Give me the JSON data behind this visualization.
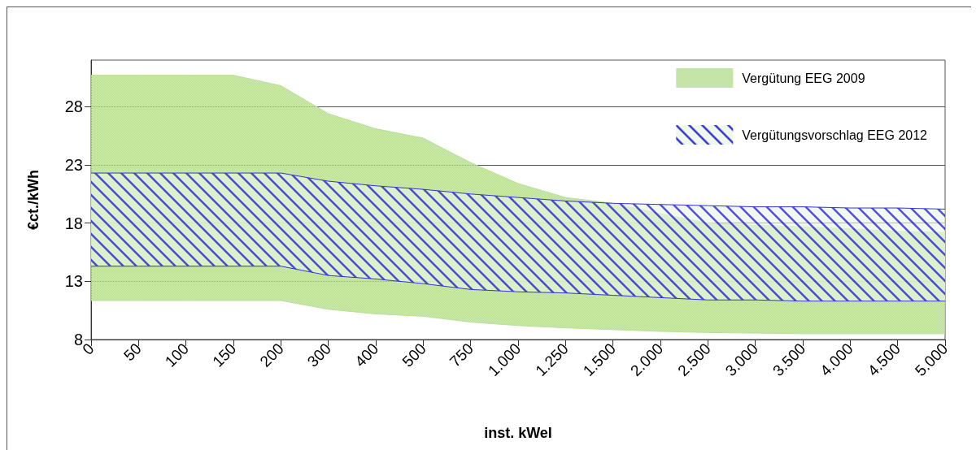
{
  "chart_data": {
    "type": "area",
    "xlabel": "inst. kWel",
    "ylabel": "€ct./kWh",
    "categories": [
      "0",
      "50",
      "100",
      "150",
      "200",
      "300",
      "400",
      "500",
      "750",
      "1.000",
      "1.250",
      "1.500",
      "2.000",
      "2.500",
      "3.000",
      "3.500",
      "4.000",
      "4.500",
      "5.000"
    ],
    "ylim": [
      8,
      32
    ],
    "yticks": [
      8,
      13,
      18,
      23,
      28
    ],
    "grid": "y",
    "legend": "top right",
    "series": [
      {
        "name": "Vergütung EEG 2009",
        "color": "#b9df98",
        "values": [
          30.7,
          30.7,
          30.7,
          30.7,
          29.8,
          27.4,
          26.1,
          25.3,
          23.2,
          21.4,
          20.2,
          19.7,
          18.8,
          18.0,
          17.8,
          17.7,
          17.5,
          17.3,
          17.2
        ]
      },
      {
        "type": "line",
        "color": "#b9df98",
        "values": [
          11.35,
          11.35,
          11.35,
          11.35,
          11.35,
          10.6,
          10.2,
          10.0,
          9.5,
          9.2,
          9.0,
          8.85,
          8.7,
          8.6,
          8.55,
          8.5,
          8.5,
          8.5,
          8.5
        ]
      },
      {
        "name": "Vergütungsvorschlag EEG 2012",
        "color": "#3333dd",
        "values": [
          22.3,
          22.3,
          22.3,
          22.3,
          22.3,
          21.6,
          21.2,
          20.9,
          20.5,
          20.2,
          19.9,
          19.7,
          19.6,
          19.5,
          19.4,
          19.4,
          19.3,
          19.3,
          19.2
        ]
      },
      {
        "type": "line",
        "color": "#3333dd",
        "values": [
          14.3,
          14.3,
          14.3,
          14.3,
          14.3,
          13.5,
          13.2,
          12.8,
          12.3,
          12.1,
          12.0,
          11.8,
          11.6,
          11.4,
          11.4,
          11.3,
          11.3,
          11.3,
          11.3
        ]
      }
    ]
  }
}
